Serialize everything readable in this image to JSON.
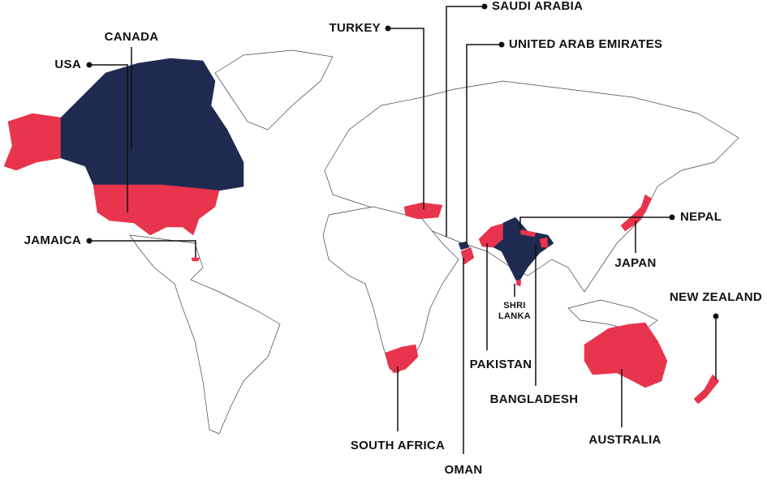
{
  "labels": {
    "canada": "CANADA",
    "usa": "USA",
    "jamaica": "JAMAICA",
    "turkey": "TURKEY",
    "saudi_arabia": "SAUDI ARABIA",
    "uae": "UNITED ARAB EMIRATES",
    "nepal": "NEPAL",
    "japan": "JAPAN",
    "new_zealand": "NEW ZEALAND",
    "shri_lanka": [
      "SHRI",
      "LANKA"
    ],
    "pakistan": "PAKISTAN",
    "bangladesh": "BANGLADESH",
    "australia": "AUSTRALIA",
    "south_africa": "SOUTH AFRICA",
    "oman": "OMAN"
  }
}
